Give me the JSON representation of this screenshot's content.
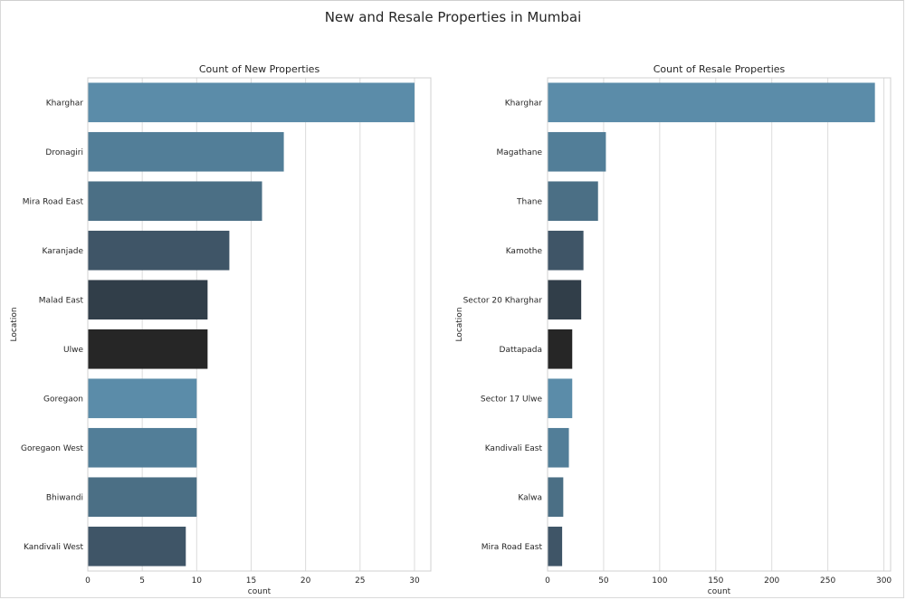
{
  "figure": {
    "title": "New and Resale Properties in Mumbai"
  },
  "chart_data": [
    {
      "type": "bar",
      "orientation": "horizontal",
      "title": "Count of New Properties",
      "xlabel": "count",
      "ylabel": "Location",
      "xlim": [
        0,
        31.5
      ],
      "xticks": [
        0,
        5,
        10,
        15,
        20,
        25,
        30
      ],
      "grid": true,
      "categories": [
        "Kharghar",
        "Dronagiri",
        "Mira Road East",
        "Karanjade",
        "Malad East",
        "Ulwe",
        "Goregaon",
        "Goregaon West",
        "Bhiwandi",
        "Kandivali West"
      ],
      "values": [
        30,
        18,
        16,
        13,
        11,
        11,
        10,
        10,
        10,
        9
      ],
      "colors": [
        "#5b8ca9",
        "#527e98",
        "#4b6f85",
        "#3f5567",
        "#313e49",
        "#262626",
        "#5b8ca9",
        "#527e98",
        "#4b6f85",
        "#3f5567"
      ]
    },
    {
      "type": "bar",
      "orientation": "horizontal",
      "title": "Count of Resale Properties",
      "xlabel": "count",
      "ylabel": "Location",
      "xlim": [
        0,
        306
      ],
      "xticks": [
        0,
        50,
        100,
        150,
        200,
        250,
        300
      ],
      "grid": true,
      "categories": [
        "Kharghar",
        "Magathane",
        "Thane",
        "Kamothe",
        "Sector 20 Kharghar",
        "Dattapada",
        "Sector 17 Ulwe",
        "Kandivali East",
        "Kalwa",
        "Mira Road East"
      ],
      "values": [
        292,
        52,
        45,
        32,
        30,
        22,
        22,
        19,
        14,
        13
      ],
      "colors": [
        "#5b8ca9",
        "#527e98",
        "#4b6f85",
        "#3f5567",
        "#313e49",
        "#262626",
        "#5b8ca9",
        "#527e98",
        "#4b6f85",
        "#3f5567"
      ]
    }
  ]
}
